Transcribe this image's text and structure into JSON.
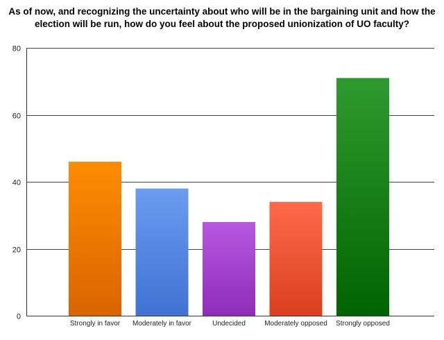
{
  "chart_data": {
    "type": "bar",
    "title_lines": [
      "As of now, and recognizing the uncertainty about who will be in the bargaining unit and how the",
      "election will be run, how do you feel about the proposed unionization of UO faculty?"
    ],
    "categories": [
      "Strongly in favor",
      "Moderately in favor",
      "Undecided",
      "Moderately opposed",
      "Strongly opposed"
    ],
    "values": [
      46,
      38,
      28,
      34,
      71
    ],
    "colors": [
      [
        "#ff8c00",
        "#d96400"
      ],
      [
        "#6a9cf0",
        "#3f72d4"
      ],
      [
        "#b858e0",
        "#8f2cb8"
      ],
      [
        "#ff6a4a",
        "#d9401f"
      ],
      [
        "#2f9a2f",
        "#006400"
      ]
    ],
    "ylim": [
      0,
      80
    ],
    "yticks": [
      0,
      20,
      40,
      60,
      80
    ],
    "xlabel": "",
    "ylabel": "",
    "grid": true,
    "legend": "none"
  }
}
